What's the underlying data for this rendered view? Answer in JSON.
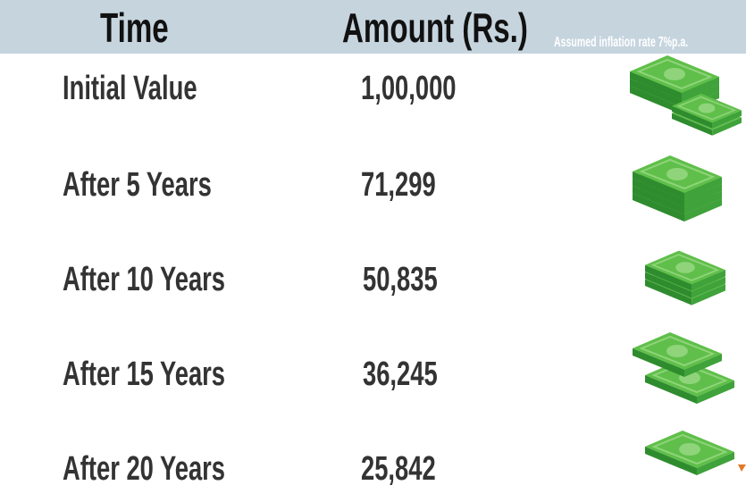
{
  "header": {
    "columns": [
      "Time",
      "Amount (Rs.)"
    ],
    "note": "Assumed inflation rate 7%p.a."
  },
  "table": {
    "rows": [
      [
        "Initial Value",
        "1,00,000"
      ],
      [
        "After 5 Years",
        "71,299"
      ],
      [
        "After 10 Years",
        "50,835"
      ],
      [
        "After 15 Years",
        "36,245"
      ],
      [
        "After 20 Years",
        "25,842"
      ]
    ]
  }
}
